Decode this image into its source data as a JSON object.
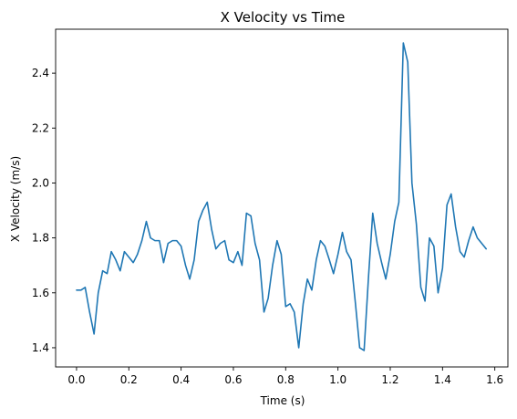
{
  "chart_data": {
    "type": "line",
    "title": "X Velocity vs Time",
    "xlabel": "Time (s)",
    "ylabel": "X Velocity (m/s)",
    "xlim": [
      -0.08,
      1.65
    ],
    "ylim": [
      1.33,
      2.56
    ],
    "xticks": [
      0.0,
      0.2,
      0.4,
      0.6,
      0.8,
      1.0,
      1.2,
      1.4,
      1.6
    ],
    "xtick_labels": [
      "0.0",
      "0.2",
      "0.4",
      "0.6",
      "0.8",
      "1.0",
      "1.2",
      "1.4",
      "1.6"
    ],
    "yticks": [
      1.4,
      1.6,
      1.8,
      2.0,
      2.2,
      2.4
    ],
    "ytick_labels": [
      "1.4",
      "1.6",
      "1.8",
      "2.0",
      "2.2",
      "2.4"
    ],
    "grid": false,
    "line_color": "#1f77b4",
    "series": [
      {
        "x": [
          0.0,
          0.017,
          0.033,
          0.05,
          0.067,
          0.083,
          0.1,
          0.117,
          0.133,
          0.15,
          0.167,
          0.183,
          0.2,
          0.217,
          0.233,
          0.25,
          0.267,
          0.283,
          0.3,
          0.317,
          0.333,
          0.35,
          0.367,
          0.383,
          0.4,
          0.417,
          0.433,
          0.45,
          0.467,
          0.483,
          0.5,
          0.517,
          0.533,
          0.55,
          0.567,
          0.583,
          0.6,
          0.617,
          0.633,
          0.65,
          0.667,
          0.683,
          0.7,
          0.717,
          0.733,
          0.75,
          0.767,
          0.783,
          0.8,
          0.817,
          0.833,
          0.85,
          0.867,
          0.883,
          0.9,
          0.917,
          0.933,
          0.95,
          0.967,
          0.983,
          1.0,
          1.017,
          1.033,
          1.05,
          1.067,
          1.083,
          1.1,
          1.117,
          1.133,
          1.15,
          1.167,
          1.183,
          1.2,
          1.217,
          1.233,
          1.25,
          1.267,
          1.283,
          1.3,
          1.317,
          1.333,
          1.35,
          1.367,
          1.383,
          1.4,
          1.417,
          1.433,
          1.45,
          1.467,
          1.483,
          1.5,
          1.517,
          1.533,
          1.55,
          1.567
        ],
        "values": [
          1.61,
          1.61,
          1.62,
          1.53,
          1.45,
          1.6,
          1.68,
          1.67,
          1.75,
          1.72,
          1.68,
          1.75,
          1.73,
          1.71,
          1.74,
          1.79,
          1.86,
          1.8,
          1.79,
          1.79,
          1.71,
          1.78,
          1.79,
          1.79,
          1.77,
          1.7,
          1.65,
          1.72,
          1.86,
          1.9,
          1.93,
          1.83,
          1.76,
          1.78,
          1.79,
          1.72,
          1.71,
          1.75,
          1.7,
          1.89,
          1.88,
          1.78,
          1.72,
          1.53,
          1.58,
          1.7,
          1.79,
          1.74,
          1.55,
          1.56,
          1.53,
          1.4,
          1.56,
          1.65,
          1.61,
          1.72,
          1.79,
          1.77,
          1.72,
          1.67,
          1.74,
          1.82,
          1.75,
          1.72,
          1.56,
          1.4,
          1.39,
          1.66,
          1.89,
          1.78,
          1.71,
          1.65,
          1.74,
          1.86,
          1.93,
          2.51,
          2.44,
          2.0,
          1.85,
          1.62,
          1.57,
          1.8,
          1.77,
          1.6,
          1.69,
          1.92,
          1.96,
          1.84,
          1.75,
          1.73,
          1.79,
          1.84,
          1.8,
          1.78,
          1.76
        ]
      }
    ]
  }
}
